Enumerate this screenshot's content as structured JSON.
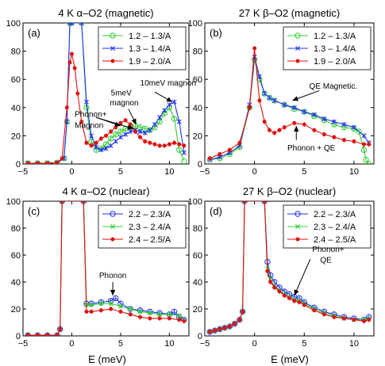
{
  "figure": {
    "xlabel": "E (meV)"
  },
  "chart_data": [
    {
      "type": "line",
      "panel_label": "(a)",
      "title": "4 K α–O2 (magnetic)",
      "xlabel": "",
      "ylabel": "",
      "xlim": [
        -5,
        12
      ],
      "ylim": [
        0,
        100
      ],
      "xticks": [
        -5,
        0,
        5,
        10
      ],
      "yticks": [
        0,
        20,
        40,
        60,
        80,
        100
      ],
      "legend_position": "top-right",
      "series": [
        {
          "name": "1.2 – 1.3/A",
          "color": "#33cc33",
          "marker": "circle",
          "x": [
            -4.5,
            -3.5,
            -2.5,
            -1.5,
            -0.8,
            -0.5,
            -0.2,
            0,
            1,
            1.5,
            2,
            2.5,
            3,
            3.5,
            4,
            4.5,
            5,
            5.5,
            6,
            6.5,
            7,
            7.5,
            8,
            8.5,
            9,
            9.5,
            10,
            10.5,
            11,
            11.5
          ],
          "y": [
            0.5,
            0.5,
            0.5,
            1,
            4,
            30,
            100,
            100,
            100,
            40,
            16,
            10,
            11,
            14,
            18,
            21,
            23,
            25,
            26,
            27,
            26,
            25,
            24,
            26,
            30,
            36,
            40,
            32,
            10,
            2
          ]
        },
        {
          "name": "1.3 – 1.4/A",
          "color": "#2233ee",
          "marker": "x",
          "x": [
            -4.5,
            -3.5,
            -2.5,
            -1.5,
            -0.8,
            -0.5,
            -0.2,
            0,
            1,
            1.5,
            2,
            2.5,
            3,
            3.5,
            4,
            4.5,
            5,
            5.5,
            6,
            6.5,
            7,
            7.5,
            8,
            8.5,
            9,
            9.5,
            10,
            10.5,
            11,
            11.5
          ],
          "y": [
            0.5,
            0.5,
            0.5,
            1,
            4,
            30,
            100,
            100,
            100,
            44,
            20,
            12,
            10,
            11,
            13,
            16,
            19,
            21,
            23,
            24,
            23,
            22,
            24,
            28,
            33,
            38,
            42,
            44,
            30,
            8
          ]
        },
        {
          "name": "1.9 – 2.0/A",
          "color": "#e01010",
          "marker": "dot",
          "x": [
            -4.5,
            -3.5,
            -2.5,
            -1.5,
            -1,
            -0.5,
            -0.2,
            0,
            0.3,
            0.6,
            1,
            1.5,
            2,
            2.5,
            3,
            3.5,
            4,
            4.5,
            5,
            5.5,
            6,
            6.5,
            7,
            7.5,
            8,
            8.5,
            9,
            9.5,
            10,
            10.5,
            11,
            11.5
          ],
          "y": [
            0.5,
            0.5,
            0.5,
            1,
            4,
            40,
            72,
            78,
            68,
            50,
            30,
            15,
            13,
            15,
            18,
            20,
            23,
            26,
            29,
            31,
            28,
            23,
            19,
            16,
            15,
            14,
            13,
            13,
            14,
            15,
            14,
            13
          ]
        }
      ],
      "annotations": [
        {
          "text": "Phonon+",
          "x": 0.3,
          "y": 33.5
        },
        {
          "text": "Magnon",
          "x": 0.3,
          "y": 25.5
        },
        {
          "text": "5meV",
          "x": 4.0,
          "y": 48.5
        },
        {
          "text": "magnon",
          "x": 3.9,
          "y": 41.5
        },
        {
          "text": "10meV magnon",
          "x": 7.0,
          "y": 55.5
        }
      ]
    },
    {
      "type": "line",
      "panel_label": "(b)",
      "title": "27 K β–O2 (magnetic)",
      "xlabel": "",
      "ylabel": "",
      "xlim": [
        -5,
        12
      ],
      "ylim": [
        0,
        100
      ],
      "xticks": [
        -5,
        0,
        5,
        10
      ],
      "yticks": [
        0,
        20,
        40,
        60,
        80,
        100
      ],
      "legend_position": "top-right",
      "series": [
        {
          "name": "1.2 – 1.3/A",
          "color": "#33cc33",
          "marker": "circle",
          "x": [
            -4.5,
            -3.5,
            -2.5,
            -1.5,
            -0.5,
            0,
            0.5,
            1,
            1.5,
            2,
            3,
            4,
            5,
            6,
            7,
            8,
            9,
            10,
            10.5,
            11,
            11.2,
            11.5
          ],
          "y": [
            3,
            4,
            7,
            12,
            40,
            74,
            60,
            50,
            47,
            45,
            42,
            39,
            37,
            34,
            31,
            28,
            26,
            25,
            23,
            10,
            3,
            0
          ]
        },
        {
          "name": "1.3 – 1.4/A",
          "color": "#2233ee",
          "marker": "x",
          "x": [
            -4.5,
            -3.5,
            -2.5,
            -1.5,
            -0.5,
            0,
            0.5,
            1,
            1.5,
            2,
            3,
            4,
            5,
            6,
            7,
            8,
            9,
            10,
            11,
            11.5
          ],
          "y": [
            3,
            5,
            8,
            13,
            42,
            76,
            62,
            50,
            47,
            45,
            42,
            40,
            37,
            35,
            32,
            30,
            28,
            26,
            20,
            15
          ]
        },
        {
          "name": "1.9 – 2.0/A",
          "color": "#e01010",
          "marker": "dot",
          "x": [
            -4.5,
            -3.5,
            -2.5,
            -1.5,
            -0.5,
            0,
            0.5,
            1,
            1.5,
            2,
            2.5,
            3,
            4,
            5,
            6,
            7,
            8,
            9,
            10,
            11,
            11.5
          ],
          "y": [
            4,
            7,
            10,
            15,
            40,
            82,
            45,
            30,
            24,
            22,
            24,
            26,
            29,
            28,
            24,
            21,
            19,
            17,
            16,
            14,
            14
          ]
        }
      ],
      "annotations": [
        {
          "text": "QE Magnetic.",
          "x": 5.5,
          "y": 53.5
        },
        {
          "text": "Phonon + QE",
          "x": 3.3,
          "y": 9.5
        }
      ]
    },
    {
      "type": "line",
      "panel_label": "(c)",
      "title": "4 K α–O2 (nuclear)",
      "xlabel": "E (meV)",
      "ylabel": "",
      "xlim": [
        -5,
        12
      ],
      "ylim": [
        0,
        100
      ],
      "xticks": [
        -5,
        0,
        5,
        10
      ],
      "yticks": [
        0,
        20,
        40,
        60,
        80,
        100
      ],
      "legend_position": "top-right",
      "series": [
        {
          "name": "2.2 – 2.3/A",
          "color": "#2233ee",
          "marker": "circle",
          "x": [
            -4.5,
            -3.5,
            -2.5,
            -1.5,
            -1.2,
            -1.0,
            1.2,
            1.5,
            2,
            3,
            4,
            4.5,
            5,
            6,
            7,
            8,
            9,
            10,
            10.5,
            11,
            11.5
          ],
          "y": [
            0.5,
            0.5,
            0.5,
            0.5,
            5,
            100,
            100,
            24,
            24,
            25,
            26,
            28,
            24,
            20,
            19,
            18,
            17,
            16,
            18,
            14,
            12
          ]
        },
        {
          "name": "2.3 – 2.4/A",
          "color": "#33cc33",
          "marker": "x",
          "x": [
            -4.5,
            -3.5,
            -2.5,
            -1.5,
            -1.2,
            -1.0,
            1.2,
            1.5,
            2,
            3,
            4,
            5,
            6,
            7,
            8,
            9,
            10,
            11,
            11.5
          ],
          "y": [
            0.5,
            0.5,
            0.5,
            0.5,
            5,
            100,
            100,
            23,
            23,
            24,
            24,
            22,
            20,
            18,
            17,
            16,
            16,
            15,
            12
          ]
        },
        {
          "name": "2.4 – 2.5/A",
          "color": "#e01010",
          "marker": "dot",
          "x": [
            -4.5,
            -3.5,
            -2.5,
            -1.5,
            -1.2,
            -1.0,
            1.2,
            1.5,
            2,
            3,
            4,
            5,
            6,
            7,
            8,
            9,
            10,
            11,
            11.5
          ],
          "y": [
            0.5,
            0.5,
            0.5,
            0.5,
            5,
            100,
            100,
            18,
            18,
            19,
            20,
            18,
            16,
            14,
            13,
            13,
            13,
            12,
            11
          ]
        }
      ],
      "annotations": [
        {
          "text": "Phonon",
          "x": 2.8,
          "y": 43
        }
      ]
    },
    {
      "type": "line",
      "panel_label": "(d)",
      "title": "27 K β–O2 (nuclear)",
      "xlabel": "E (meV)",
      "ylabel": "",
      "xlim": [
        -5,
        12
      ],
      "ylim": [
        0,
        100
      ],
      "xticks": [
        -5,
        0,
        5,
        10
      ],
      "yticks": [
        0,
        20,
        40,
        60,
        80,
        100
      ],
      "legend_position": "top-right",
      "series": [
        {
          "name": "2.2 – 2.3/A",
          "color": "#2233ee",
          "marker": "circle",
          "x": [
            -4.5,
            -4,
            -3.5,
            -3,
            -2.5,
            -2,
            -1.5,
            -1.2,
            -1.0,
            1.0,
            1.3,
            1.6,
            2,
            2.5,
            3,
            3.5,
            4,
            4.5,
            5,
            6,
            7,
            8,
            9,
            10,
            11,
            11.5
          ],
          "y": [
            3,
            4,
            5,
            6,
            7,
            9,
            12,
            18,
            100,
            100,
            55,
            45,
            40,
            36,
            33,
            31,
            29,
            28,
            25,
            21,
            18,
            16,
            14,
            13,
            12,
            14
          ]
        },
        {
          "name": "2.3 – 2.4/A",
          "color": "#33cc33",
          "marker": "x",
          "x": [
            -4.5,
            -4,
            -3.5,
            -3,
            -2.5,
            -2,
            -1.5,
            -1.2,
            -1.0,
            1.0,
            1.3,
            1.6,
            2,
            2.5,
            3,
            3.5,
            4,
            4.5,
            5,
            6,
            7,
            8,
            9,
            10,
            11,
            11.5
          ],
          "y": [
            3,
            4,
            5,
            6,
            7,
            9,
            12,
            18,
            100,
            100,
            50,
            42,
            37,
            34,
            31,
            29,
            27,
            26,
            24,
            20,
            17,
            15,
            13,
            12,
            12,
            13
          ]
        },
        {
          "name": "2.4 – 2.5/A",
          "color": "#e01010",
          "marker": "dot",
          "x": [
            -4.5,
            -4,
            -3.5,
            -3,
            -2.5,
            -2,
            -1.5,
            -1.2,
            -1.0,
            1.0,
            1.3,
            1.6,
            2,
            2.5,
            3,
            3.5,
            4,
            4.5,
            5,
            6,
            7,
            8,
            9,
            10,
            11,
            11.5
          ],
          "y": [
            3,
            4,
            5,
            6,
            7,
            9,
            12,
            18,
            100,
            100,
            48,
            40,
            36,
            33,
            30,
            28,
            26,
            25,
            23,
            19,
            16,
            14,
            13,
            12,
            11,
            12
          ]
        }
      ],
      "annotations": [
        {
          "text": "Phonon+",
          "x": 5.8,
          "y": 62.5
        },
        {
          "text": "QE",
          "x": 6.6,
          "y": 54.5
        }
      ]
    }
  ]
}
